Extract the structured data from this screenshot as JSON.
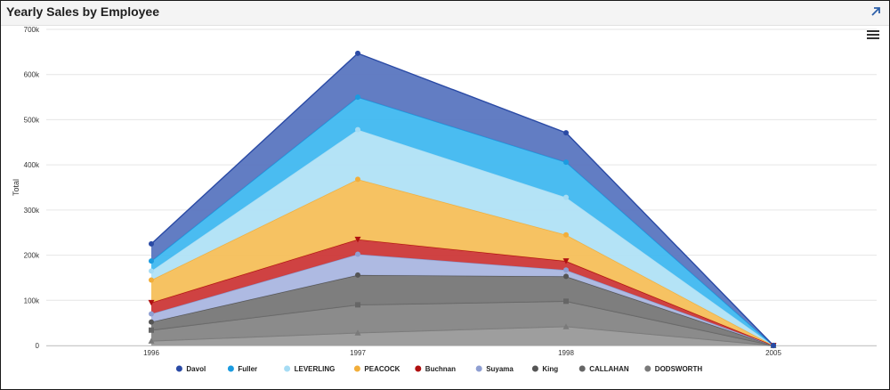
{
  "header": {
    "title": "Yearly Sales by Employee"
  },
  "chart_data": {
    "type": "area",
    "stacked": true,
    "title": "Yearly Sales by Employee",
    "xlabel": "",
    "ylabel": "Total",
    "categories": [
      "1996",
      "1997",
      "1998",
      "2005"
    ],
    "ylim": [
      0,
      700000
    ],
    "yticks": [
      0,
      100000,
      200000,
      300000,
      400000,
      500000,
      600000,
      700000
    ],
    "ytick_labels": [
      "0",
      "100k",
      "200k",
      "300k",
      "400k",
      "500k",
      "600k",
      "700k"
    ],
    "grid": true,
    "legend_position": "bottom-center",
    "series": [
      {
        "name": "Davol",
        "color": "#2a4aa5",
        "fill": "#5a76c0",
        "marker": "circle",
        "values": [
          38000,
          97000,
          65000,
          0
        ]
      },
      {
        "name": "Fuller",
        "color": "#1a9be0",
        "fill": "#40b8f0",
        "marker": "circle",
        "values": [
          22000,
          72000,
          78000,
          0
        ]
      },
      {
        "name": "LEVERLING",
        "color": "#a6dcf4",
        "fill": "#b0e2f6",
        "marker": "circle",
        "values": [
          20000,
          110000,
          83000,
          0
        ]
      },
      {
        "name": "PEACOCK",
        "color": "#f2ae3a",
        "fill": "#f5bf5a",
        "marker": "circle",
        "values": [
          50000,
          133000,
          58000,
          0
        ]
      },
      {
        "name": "Buchnan",
        "color": "#b01010",
        "fill": "#cc3838",
        "marker": "triangle-down",
        "values": [
          25000,
          33000,
          20000,
          0
        ]
      },
      {
        "name": "Suyama",
        "color": "#8f9fd2",
        "fill": "#aab6e0",
        "marker": "circle",
        "values": [
          18000,
          46000,
          14000,
          0
        ]
      },
      {
        "name": "King",
        "color": "#555555",
        "fill": "#777777",
        "marker": "circle",
        "values": [
          18000,
          66000,
          55000,
          0
        ]
      },
      {
        "name": "CALLAHAN",
        "color": "#666666",
        "fill": "#858585",
        "marker": "square",
        "values": [
          24000,
          62000,
          56000,
          0
        ]
      },
      {
        "name": "DODSWORTH",
        "color": "#7a7a7a",
        "fill": "#999999",
        "marker": "triangle",
        "values": [
          10000,
          28000,
          42000,
          0
        ]
      }
    ]
  }
}
